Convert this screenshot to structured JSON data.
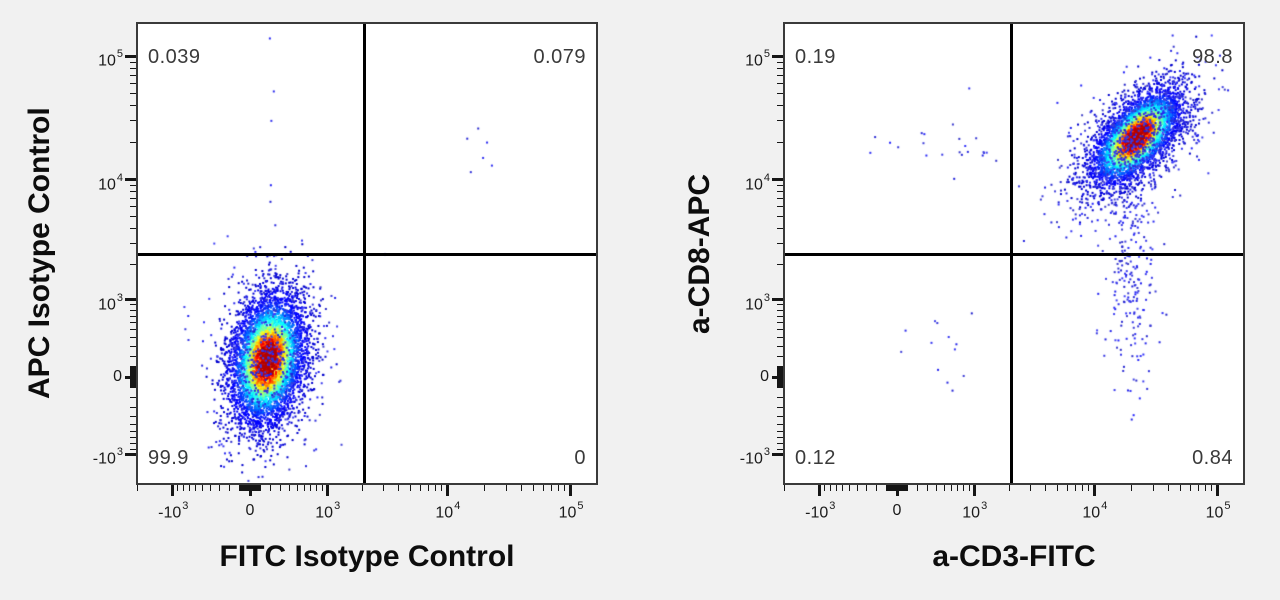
{
  "style": {
    "background": "#f1f1f1",
    "plot_background": "#ffffff",
    "frame_border": "#3a3a3a",
    "gate_line": "#000000",
    "stat_label_color": "#3a3a3a",
    "tick_color": "#161616",
    "sparse_dot_blue": "#2b2be0",
    "density_colormap": "jet (blue -> cyan -> green -> yellow -> orange -> red core)"
  },
  "chart_data": [
    {
      "type": "scatter",
      "variant": "flow-cytometry-pseudocolor-density-plot",
      "xlabel": "FITC Isotype Control",
      "ylabel": "APC Isotype Control",
      "scale": {
        "type": "asinh-biexponential",
        "cofactor": 500
      },
      "x_axis_range": [
        -2100,
        170000
      ],
      "y_axis_range": [
        -1850,
        195000
      ],
      "x_ticks": [
        {
          "value": -1000,
          "label_base": "-10",
          "label_exp": "3"
        },
        {
          "value": 0,
          "label_base": "0",
          "label_exp": ""
        },
        {
          "value": 1000,
          "label_base": "10",
          "label_exp": "3"
        },
        {
          "value": 10000,
          "label_base": "10",
          "label_exp": "4"
        },
        {
          "value": 100000,
          "label_base": "10",
          "label_exp": "5"
        }
      ],
      "y_ticks": [
        {
          "value": -1000,
          "label_base": "-10",
          "label_exp": "3"
        },
        {
          "value": 0,
          "label_base": "0",
          "label_exp": ""
        },
        {
          "value": 1000,
          "label_base": "10",
          "label_exp": "3"
        },
        {
          "value": 10000,
          "label_base": "10",
          "label_exp": "4"
        },
        {
          "value": 100000,
          "label_base": "10",
          "label_exp": "5"
        }
      ],
      "minor_ticks_rule": "2-9 per log decade, mirrored negatives, linear 10-900 pileup near zero",
      "gate": {
        "x": 2100,
        "y": 2450
      },
      "quadrants": {
        "upper_left": "0.039",
        "upper_right": "0.079",
        "lower_left": "99.9",
        "lower_right": "0"
      },
      "populations": [
        {
          "name": "unstained-main",
          "n": 5200,
          "center": [
            170,
            160
          ],
          "sigma_major": 0.62,
          "sigma_minor": 0.34,
          "angle_deg": 80,
          "color": "density-jet",
          "seed": 11
        },
        {
          "name": "unstained-halo",
          "n": 620,
          "center": [
            170,
            150
          ],
          "sigma_major": 0.88,
          "sigma_minor": 0.5,
          "angle_deg": 80,
          "color": "blue",
          "seed": 12
        }
      ],
      "outlier_points": [
        [
          190,
          140000
        ],
        [
          205,
          30000
        ],
        [
          200,
          9000
        ],
        [
          196,
          6600
        ],
        [
          230,
          52000
        ],
        [
          17800,
          26000
        ],
        [
          21000,
          20000
        ],
        [
          14500,
          21500
        ],
        [
          23000,
          13000
        ],
        [
          15500,
          11500
        ],
        [
          19500,
          15000
        ],
        [
          3100,
          2450
        ]
      ]
    },
    {
      "type": "scatter",
      "variant": "flow-cytometry-pseudocolor-density-plot",
      "xlabel": "a-CD3-FITC",
      "ylabel": "a-CD8-APC",
      "scale": {
        "type": "asinh-biexponential",
        "cofactor": 500
      },
      "x_axis_range": [
        -2100,
        170000
      ],
      "y_axis_range": [
        -1850,
        195000
      ],
      "x_ticks": [
        {
          "value": -1000,
          "label_base": "-10",
          "label_exp": "3"
        },
        {
          "value": 0,
          "label_base": "0",
          "label_exp": ""
        },
        {
          "value": 1000,
          "label_base": "10",
          "label_exp": "3"
        },
        {
          "value": 10000,
          "label_base": "10",
          "label_exp": "4"
        },
        {
          "value": 100000,
          "label_base": "10",
          "label_exp": "5"
        }
      ],
      "y_ticks": [
        {
          "value": -1000,
          "label_base": "-10",
          "label_exp": "3"
        },
        {
          "value": 0,
          "label_base": "0",
          "label_exp": ""
        },
        {
          "value": 1000,
          "label_base": "10",
          "label_exp": "3"
        },
        {
          "value": 10000,
          "label_base": "10",
          "label_exp": "4"
        },
        {
          "value": 100000,
          "label_base": "10",
          "label_exp": "5"
        }
      ],
      "minor_ticks_rule": "2-9 per log decade, mirrored negatives, linear 10-900 pileup near zero",
      "gate": {
        "x": 2100,
        "y": 2450
      },
      "quadrants": {
        "upper_left": "0.19",
        "upper_right": "98.8",
        "lower_left": "0.12",
        "lower_right": "0.84"
      },
      "populations": [
        {
          "name": "cd3pos-cd8pos-main",
          "n": 4300,
          "center": [
            22000,
            22000
          ],
          "sigma_major": 0.55,
          "sigma_minor": 0.27,
          "angle_deg": 48,
          "color": "density-jet",
          "seed": 21
        },
        {
          "name": "cd3pos-cd8pos-halo",
          "n": 850,
          "center": [
            22000,
            21000
          ],
          "sigma_major": 0.85,
          "sigma_minor": 0.45,
          "angle_deg": 48,
          "color": "blue",
          "seed": 22
        },
        {
          "name": "cd3pos-cd8dim-tail",
          "n": 230,
          "center": [
            20000,
            1800
          ],
          "sigma_major": 1.05,
          "sigma_minor": 0.22,
          "angle_deg": 90,
          "color": "blue",
          "seed": 23
        },
        {
          "name": "cd3neg-cd8pos-events",
          "n": 22,
          "center": [
            450,
            18000
          ],
          "sigma_major": 0.6,
          "sigma_minor": 0.25,
          "angle_deg": 0,
          "color": "blue",
          "seed": 24
        },
        {
          "name": "double-negative-events",
          "n": 13,
          "center": [
            380,
            150
          ],
          "sigma_major": 0.5,
          "sigma_minor": 0.45,
          "angle_deg": 0,
          "color": "blue",
          "seed": 25
        }
      ],
      "outlier_points": [
        [
          5000,
          42000
        ],
        [
          900,
          55000
        ]
      ]
    }
  ]
}
